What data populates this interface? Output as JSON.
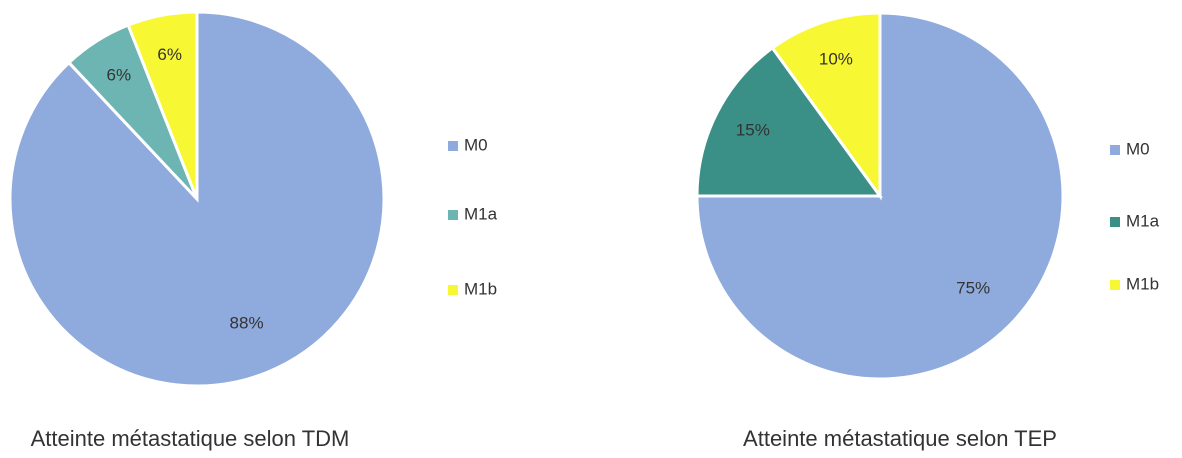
{
  "chart_data": [
    {
      "type": "pie",
      "title": "Atteinte métastatique selon TDM",
      "categories": [
        "M0",
        "M1a",
        "M1b"
      ],
      "values": [
        88,
        6,
        6
      ],
      "value_labels": [
        "88%",
        "6%",
        "6%"
      ],
      "colors": [
        "#8faadc",
        "#6cb5b3",
        "#f7f733"
      ],
      "legend": "right"
    },
    {
      "type": "pie",
      "title": "Atteinte métastatique selon TEP",
      "categories": [
        "M0",
        "M1a",
        "M1b"
      ],
      "values": [
        75,
        15,
        10
      ],
      "value_labels": [
        "75%",
        "15%",
        "10%"
      ],
      "colors": [
        "#8faadc",
        "#3a8f86",
        "#f7f733"
      ],
      "legend": "right"
    }
  ]
}
